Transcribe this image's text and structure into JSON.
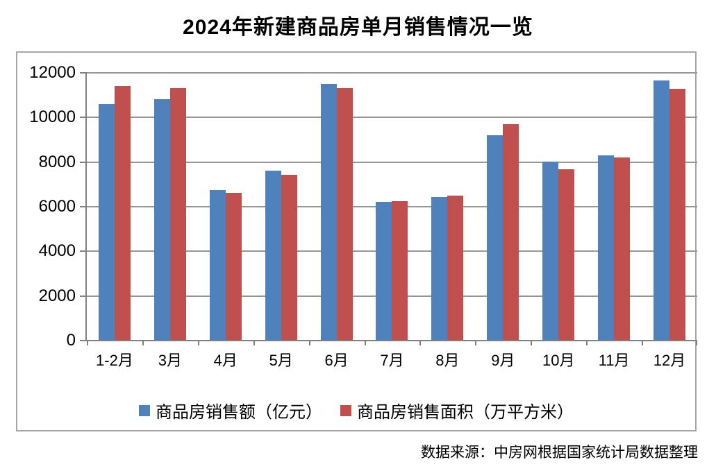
{
  "page": {
    "title": "2024年新建商品房单月销售情况一览",
    "source_note": "数据来源：中房网根据国家统计局数据整理"
  },
  "chart_data": {
    "type": "bar",
    "title": "2024年新建商品房单月销售情况一览",
    "categories": [
      "1-2月",
      "3月",
      "4月",
      "5月",
      "6月",
      "7月",
      "8月",
      "9月",
      "10月",
      "11月",
      "12月"
    ],
    "series": [
      {
        "name": "商品房销售额（亿元）",
        "key": "sales-amount",
        "color": "#4F81BD",
        "values": [
          10566,
          10789,
          6712,
          7598,
          11468,
          6197,
          6393,
          9157,
          7975,
          8270,
          11625
        ]
      },
      {
        "name": "商品房销售面积（万平方米）",
        "key": "sales-area",
        "color": "#C0504D",
        "values": [
          11369,
          11299,
          6584,
          7390,
          11274,
          6233,
          6453,
          9682,
          7646,
          8188,
          11267
        ]
      }
    ],
    "ylim": [
      0,
      12000
    ],
    "yticks": [
      0,
      2000,
      4000,
      6000,
      8000,
      10000,
      12000
    ],
    "grid": true,
    "legend_position": "bottom",
    "axis_color": "#808080",
    "gridline_color": "#969696",
    "frame_color": "#A6A6A6",
    "title_color": "#000000",
    "text_color": "#000000",
    "source": "数据来源：中房网根据国家统计局数据整理"
  }
}
